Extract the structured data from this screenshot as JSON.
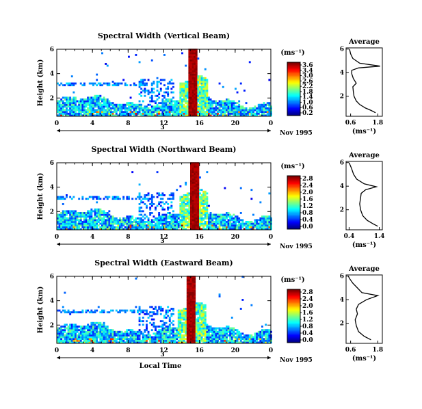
{
  "chart_data": [
    {
      "type": "heatmap",
      "title": "Spectral Width (Vertical Beam)",
      "ylabel": "Height (km)",
      "x_ticks": [
        "0",
        "4",
        "8",
        "12",
        "16",
        "20",
        "0"
      ],
      "y_ticks": [
        "2",
        "4",
        "6"
      ],
      "xlim": [
        0,
        24
      ],
      "ylim": [
        0.5,
        6
      ],
      "day_label": "3",
      "date_label": "Nov 1995",
      "unit_label": "(ms⁻¹)",
      "colorbar_ticks": [
        "3.6",
        "3.4",
        "3.0",
        "2.6",
        "2.2",
        "1.8",
        "1.4",
        "1.0",
        "0.6",
        "0.2"
      ],
      "colorbar_max": 3.6,
      "average": {
        "title": "Average",
        "xlabel": "(ms⁻¹)",
        "x_ticks": [
          "0.6",
          "1.8"
        ],
        "xlim": [
          0.4,
          2.0
        ],
        "y_ticks": [
          "2",
          "4",
          "6"
        ],
        "profile": [
          [
            1.7,
            0.6
          ],
          [
            1.5,
            0.8
          ],
          [
            1.25,
            1.0
          ],
          [
            1.0,
            1.3
          ],
          [
            0.85,
            1.6
          ],
          [
            0.75,
            2.0
          ],
          [
            0.72,
            2.4
          ],
          [
            0.7,
            2.8
          ],
          [
            0.85,
            3.1
          ],
          [
            0.72,
            3.5
          ],
          [
            0.65,
            3.9
          ],
          [
            0.65,
            4.2
          ],
          [
            0.95,
            4.4
          ],
          [
            1.9,
            4.55
          ],
          [
            1.0,
            4.8
          ],
          [
            0.7,
            5.2
          ],
          [
            0.6,
            5.6
          ],
          [
            0.55,
            6.0
          ]
        ]
      }
    },
    {
      "type": "heatmap",
      "title": "Spectral Width (Northward Beam)",
      "ylabel": "Height (km)",
      "x_ticks": [
        "0",
        "4",
        "8",
        "12",
        "16",
        "20",
        "0"
      ],
      "y_ticks": [
        "2",
        "4",
        "6"
      ],
      "xlim": [
        0,
        24
      ],
      "ylim": [
        0.5,
        6
      ],
      "day_label": "3",
      "date_label": "Nov 1995",
      "unit_label": "(ms⁻¹)",
      "colorbar_ticks": [
        "2.8",
        "2.4",
        "2.0",
        "1.6",
        "1.2",
        "0.8",
        "0.4",
        "0.0"
      ],
      "colorbar_max": 2.8,
      "average": {
        "title": "Average",
        "xlabel": "(ms⁻¹)",
        "x_ticks": [
          "0.4",
          "1.4"
        ],
        "xlim": [
          0.3,
          1.5
        ],
        "y_ticks": [
          "2",
          "4",
          "6"
        ],
        "profile": [
          [
            1.35,
            0.6
          ],
          [
            1.2,
            0.8
          ],
          [
            1.0,
            1.1
          ],
          [
            0.85,
            1.5
          ],
          [
            0.78,
            2.0
          ],
          [
            0.75,
            2.5
          ],
          [
            0.78,
            3.0
          ],
          [
            0.8,
            3.4
          ],
          [
            0.95,
            3.7
          ],
          [
            1.3,
            3.95
          ],
          [
            0.9,
            4.2
          ],
          [
            0.65,
            4.6
          ],
          [
            0.55,
            5.0
          ],
          [
            0.48,
            5.5
          ],
          [
            0.4,
            6.0
          ]
        ]
      }
    },
    {
      "type": "heatmap",
      "title": "Spectral Width (Eastward Beam)",
      "ylabel": "Height (km)",
      "x_ticks": [
        "0",
        "4",
        "8",
        "12",
        "16",
        "20",
        "0"
      ],
      "y_ticks": [
        "2",
        "4",
        "6"
      ],
      "xlim": [
        0,
        24
      ],
      "ylim": [
        0.5,
        6
      ],
      "day_label": "3",
      "date_label": "Nov 1995",
      "xlabel": "Local Time",
      "unit_label": "(ms⁻¹)",
      "colorbar_ticks": [
        "2.8",
        "2.4",
        "2.0",
        "1.6",
        "1.2",
        "0.8",
        "0.4",
        "0.0"
      ],
      "colorbar_max": 2.8,
      "average": {
        "title": "Average",
        "xlabel": "(ms⁻¹)",
        "x_ticks": [
          "0.6",
          "1.8"
        ],
        "xlim": [
          0.4,
          2.0
        ],
        "y_ticks": [
          "2",
          "4",
          "6"
        ],
        "profile": [
          [
            1.5,
            0.6
          ],
          [
            1.2,
            0.9
          ],
          [
            0.95,
            1.3
          ],
          [
            0.85,
            1.8
          ],
          [
            0.8,
            2.3
          ],
          [
            0.9,
            2.8
          ],
          [
            0.85,
            3.2
          ],
          [
            0.95,
            3.6
          ],
          [
            1.3,
            4.0
          ],
          [
            1.8,
            4.35
          ],
          [
            1.1,
            4.6
          ],
          [
            0.9,
            5.0
          ],
          [
            0.7,
            5.4
          ],
          [
            0.55,
            5.8
          ],
          [
            0.5,
            6.0
          ]
        ]
      }
    }
  ]
}
